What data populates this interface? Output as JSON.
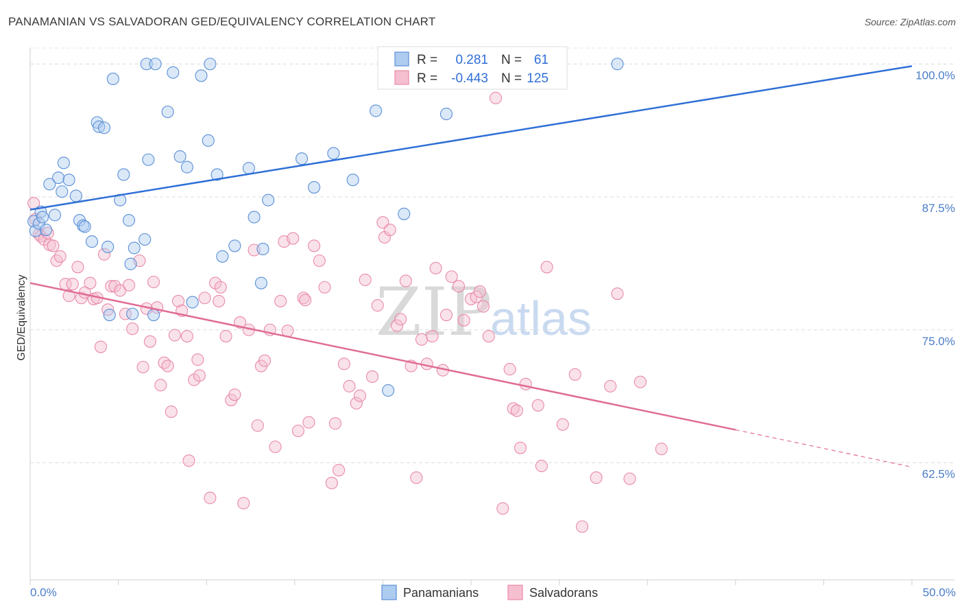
{
  "title": "PANAMANIAN VS SALVADORAN GED/EQUIVALENCY CORRELATION CHART",
  "source": "Source: ZipAtlas.com",
  "colors": {
    "blue": "#5b8fd6",
    "blue_fill": "#aecbf0",
    "blue_line": "#2f6fd6",
    "pink": "#e88aa8",
    "pink_fill": "#f5bfd0",
    "pink_line": "#e06c96"
  },
  "legend": {
    "rows": [
      {
        "r_label": "R =",
        "r_value": "0.281",
        "n_label": "N =",
        "n_value": "61"
      },
      {
        "r_label": "R =",
        "r_value": "-0.443",
        "n_label": "N =",
        "n_value": "125"
      }
    ]
  },
  "bottom_legend": [
    "Panamanians",
    "Salvadorans"
  ],
  "watermark": {
    "zip": "ZIP",
    "atlas": "atlas"
  },
  "chart_data": {
    "type": "scatter",
    "title": "PANAMANIAN VS SALVADORAN GED/EQUIVALENCY CORRELATION CHART",
    "xlabel": "",
    "ylabel": "GED/Equivalency",
    "xlim": [
      0,
      50
    ],
    "ylim": [
      51.5,
      101.5
    ],
    "x_tick_labels": [
      "0.0%",
      "50.0%"
    ],
    "y_ticks": [
      62.5,
      75.0,
      87.5,
      100.0
    ],
    "y_tick_labels": [
      "62.5%",
      "75.0%",
      "87.5%",
      "100.0%"
    ],
    "grid": true,
    "legend_position": "top-center",
    "series": [
      {
        "name": "Panamanians",
        "points": [
          [
            0.2,
            85.2
          ],
          [
            0.3,
            84.3
          ],
          [
            0.5,
            85.0
          ],
          [
            0.6,
            86.1
          ],
          [
            0.7,
            85.6
          ],
          [
            0.9,
            84.4
          ],
          [
            1.1,
            88.7
          ],
          [
            1.4,
            85.8
          ],
          [
            1.6,
            89.3
          ],
          [
            1.8,
            88.0
          ],
          [
            1.9,
            90.7
          ],
          [
            2.2,
            89.1
          ],
          [
            2.6,
            87.6
          ],
          [
            2.8,
            85.3
          ],
          [
            3.0,
            84.8
          ],
          [
            3.1,
            84.7
          ],
          [
            3.5,
            83.3
          ],
          [
            3.8,
            94.5
          ],
          [
            3.9,
            94.1
          ],
          [
            4.2,
            94.0
          ],
          [
            4.4,
            82.8
          ],
          [
            4.7,
            98.6
          ],
          [
            5.1,
            87.2
          ],
          [
            5.3,
            89.6
          ],
          [
            5.6,
            85.3
          ],
          [
            5.9,
            82.7
          ],
          [
            5.7,
            81.2
          ],
          [
            6.5,
            83.5
          ],
          [
            6.7,
            91.0
          ],
          [
            7.0,
            76.4
          ],
          [
            6.6,
            100.0
          ],
          [
            7.1,
            100.0
          ],
          [
            7.8,
            95.5
          ],
          [
            8.1,
            99.2
          ],
          [
            8.5,
            91.3
          ],
          [
            8.9,
            90.3
          ],
          [
            9.2,
            77.6
          ],
          [
            9.7,
            98.9
          ],
          [
            10.1,
            92.8
          ],
          [
            10.2,
            100.0
          ],
          [
            10.6,
            89.6
          ],
          [
            10.9,
            81.9
          ],
          [
            11.6,
            82.9
          ],
          [
            12.4,
            90.2
          ],
          [
            12.7,
            85.6
          ],
          [
            13.1,
            79.4
          ],
          [
            13.2,
            82.6
          ],
          [
            13.5,
            87.2
          ],
          [
            15.4,
            91.1
          ],
          [
            16.1,
            88.4
          ],
          [
            17.2,
            91.6
          ],
          [
            18.3,
            89.1
          ],
          [
            19.6,
            95.6
          ],
          [
            20.3,
            69.3
          ],
          [
            21.2,
            85.9
          ],
          [
            22.4,
            100.0
          ],
          [
            23.6,
            95.3
          ],
          [
            24.7,
            100.0
          ],
          [
            33.3,
            100.0
          ],
          [
            4.5,
            76.4
          ],
          [
            5.8,
            76.5
          ]
        ],
        "trend": {
          "x": [
            0,
            50
          ],
          "y": [
            86.3,
            99.8
          ]
        }
      },
      {
        "name": "Salvadorans",
        "points": [
          [
            0.2,
            86.9
          ],
          [
            0.3,
            85.4
          ],
          [
            0.5,
            84.0
          ],
          [
            0.6,
            83.8
          ],
          [
            0.8,
            83.5
          ],
          [
            1.0,
            84.1
          ],
          [
            1.1,
            83.0
          ],
          [
            1.3,
            82.9
          ],
          [
            1.5,
            81.5
          ],
          [
            1.7,
            81.9
          ],
          [
            2.0,
            79.3
          ],
          [
            2.2,
            78.2
          ],
          [
            2.4,
            79.3
          ],
          [
            2.7,
            80.9
          ],
          [
            2.9,
            78.0
          ],
          [
            3.1,
            78.5
          ],
          [
            3.4,
            79.4
          ],
          [
            3.6,
            77.9
          ],
          [
            3.8,
            78.0
          ],
          [
            4.0,
            73.4
          ],
          [
            4.2,
            82.1
          ],
          [
            4.4,
            76.9
          ],
          [
            4.6,
            79.1
          ],
          [
            4.8,
            79.1
          ],
          [
            5.1,
            78.7
          ],
          [
            5.4,
            76.5
          ],
          [
            5.6,
            79.2
          ],
          [
            5.8,
            75.1
          ],
          [
            6.2,
            81.5
          ],
          [
            6.4,
            71.5
          ],
          [
            6.6,
            77.0
          ],
          [
            6.8,
            73.9
          ],
          [
            7.0,
            79.5
          ],
          [
            7.2,
            77.1
          ],
          [
            7.4,
            69.8
          ],
          [
            7.6,
            71.9
          ],
          [
            7.8,
            71.6
          ],
          [
            8.0,
            67.3
          ],
          [
            8.2,
            74.5
          ],
          [
            8.4,
            77.7
          ],
          [
            8.6,
            76.8
          ],
          [
            8.9,
            74.4
          ],
          [
            9.0,
            62.7
          ],
          [
            9.3,
            70.3
          ],
          [
            9.5,
            72.2
          ],
          [
            9.6,
            70.7
          ],
          [
            9.9,
            78.0
          ],
          [
            10.2,
            59.2
          ],
          [
            10.5,
            79.4
          ],
          [
            10.7,
            77.7
          ],
          [
            10.8,
            79.0
          ],
          [
            11.1,
            74.4
          ],
          [
            11.4,
            68.4
          ],
          [
            11.6,
            68.9
          ],
          [
            11.9,
            75.7
          ],
          [
            12.1,
            58.7
          ],
          [
            12.4,
            75.0
          ],
          [
            12.7,
            82.5
          ],
          [
            12.9,
            66.0
          ],
          [
            13.1,
            71.6
          ],
          [
            13.3,
            72.1
          ],
          [
            13.6,
            75.0
          ],
          [
            13.9,
            64.0
          ],
          [
            14.2,
            77.7
          ],
          [
            14.4,
            83.3
          ],
          [
            14.6,
            74.9
          ],
          [
            14.9,
            83.6
          ],
          [
            15.2,
            65.5
          ],
          [
            15.5,
            78.0
          ],
          [
            15.6,
            77.8
          ],
          [
            15.8,
            66.3
          ],
          [
            16.1,
            82.9
          ],
          [
            16.4,
            81.5
          ],
          [
            16.7,
            79.0
          ],
          [
            17.1,
            60.6
          ],
          [
            17.3,
            66.2
          ],
          [
            17.5,
            61.8
          ],
          [
            17.8,
            71.8
          ],
          [
            18.1,
            69.7
          ],
          [
            18.5,
            68.1
          ],
          [
            18.7,
            68.8
          ],
          [
            19.0,
            79.7
          ],
          [
            19.4,
            70.6
          ],
          [
            19.7,
            77.3
          ],
          [
            20.0,
            85.1
          ],
          [
            20.1,
            83.7
          ],
          [
            20.4,
            84.4
          ],
          [
            20.8,
            75.4
          ],
          [
            21.0,
            76.0
          ],
          [
            21.3,
            79.6
          ],
          [
            21.6,
            71.6
          ],
          [
            21.9,
            61.1
          ],
          [
            22.2,
            74.1
          ],
          [
            22.5,
            71.8
          ],
          [
            22.8,
            74.4
          ],
          [
            23.0,
            80.8
          ],
          [
            23.4,
            71.2
          ],
          [
            23.6,
            76.4
          ],
          [
            23.9,
            80.0
          ],
          [
            24.3,
            79.1
          ],
          [
            24.6,
            75.9
          ],
          [
            25.0,
            77.9
          ],
          [
            25.3,
            78.1
          ],
          [
            25.5,
            78.6
          ],
          [
            25.7,
            77.2
          ],
          [
            26.0,
            74.4
          ],
          [
            26.4,
            96.8
          ],
          [
            26.8,
            58.2
          ],
          [
            27.2,
            71.3
          ],
          [
            27.4,
            67.6
          ],
          [
            27.6,
            67.4
          ],
          [
            27.8,
            63.9
          ],
          [
            28.1,
            69.9
          ],
          [
            28.8,
            67.9
          ],
          [
            29.0,
            62.2
          ],
          [
            29.3,
            80.9
          ],
          [
            30.2,
            66.1
          ],
          [
            30.9,
            70.8
          ],
          [
            31.3,
            56.5
          ],
          [
            32.1,
            61.1
          ],
          [
            32.9,
            69.7
          ],
          [
            33.3,
            78.4
          ],
          [
            34.0,
            61.0
          ],
          [
            34.6,
            70.1
          ],
          [
            35.8,
            63.8
          ]
        ],
        "trend": {
          "x": [
            0,
            40
          ],
          "y": [
            79.4,
            65.6
          ]
        },
        "trend_dashed_extension": {
          "x": [
            40,
            50
          ],
          "y": [
            65.6,
            62.1
          ]
        }
      }
    ]
  }
}
